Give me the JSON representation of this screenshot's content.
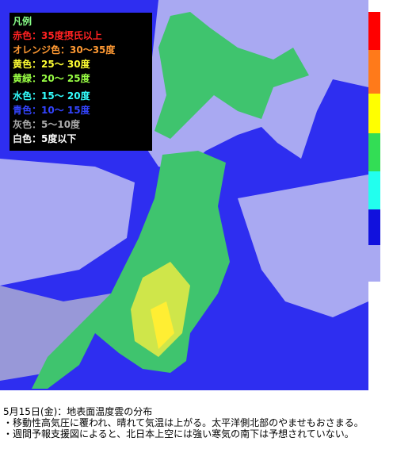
{
  "legend": {
    "title": "凡例",
    "items": [
      "赤色：35度摂氏以上",
      "オレンジ色：30～35度",
      "黄色：25～ 30度",
      "黄緑：20～ 25度",
      "水色：15～ 20度",
      "青色：10～ 15度",
      "灰色：5～10度",
      "白色：5度以下"
    ]
  },
  "caption": {
    "heading": "5月15日(金)：地表面温度雲の分布",
    "bullets": [
      "・移動性高気圧に覆われ、晴れて気温は上がる。太平洋側北部のやませもおさまる。",
      "・週間予報支援図によると、北日本上空には強い寒気の南下は予想されていない。"
    ]
  }
}
